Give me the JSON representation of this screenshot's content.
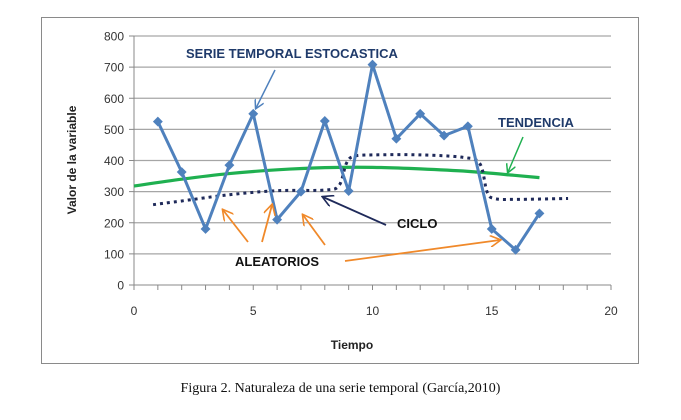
{
  "chart_data": {
    "type": "line",
    "xlabel": "Tiempo",
    "ylabel": "Valor de la variable",
    "xlim": [
      0,
      20
    ],
    "ylim": [
      0,
      800
    ],
    "xticks": [
      0,
      5,
      10,
      15,
      20
    ],
    "xtick_labels": [
      "0",
      "5",
      "10",
      "15",
      "20"
    ],
    "yticks": [
      0,
      100,
      200,
      300,
      400,
      500,
      600,
      700,
      800
    ],
    "ytick_labels": [
      "0",
      "100",
      "200",
      "300",
      "400",
      "500",
      "600",
      "700",
      "800"
    ],
    "grid": true,
    "series": [
      {
        "name": "SERIE TEMPORAL ESTOCASTICA",
        "style": "solid-markers",
        "color": "#4f81bd",
        "x": [
          1,
          2,
          3,
          4,
          5,
          6,
          7,
          8,
          9,
          10,
          11,
          12,
          13,
          14,
          15,
          16,
          17
        ],
        "values": [
          525,
          363,
          180,
          385,
          550,
          210,
          300,
          527,
          302,
          708,
          470,
          550,
          480,
          510,
          180,
          113,
          230
        ]
      },
      {
        "name": "TENDENCIA",
        "style": "solid",
        "color": "#1fb050",
        "x": [
          0,
          2,
          4,
          6,
          8,
          10,
          12,
          14,
          16,
          17
        ],
        "values": [
          318,
          340,
          358,
          370,
          377,
          378,
          373,
          365,
          352,
          345
        ]
      },
      {
        "name": "CICLO",
        "style": "dotted",
        "color": "#1f2a5a",
        "x": [
          0.8,
          2,
          4,
          6,
          8,
          8.6,
          8.9,
          9.2,
          10,
          12,
          13.8,
          14.5,
          14.8,
          15.1,
          16,
          18.2
        ],
        "values": [
          258,
          270,
          290,
          303,
          305,
          320,
          390,
          413,
          418,
          418,
          410,
          390,
          300,
          278,
          275,
          278
        ]
      }
    ],
    "annotations": [
      {
        "text": "SERIE TEMPORAL ESTOCASTICA",
        "color": "#1f3a6a"
      },
      {
        "text": "TENDENCIA",
        "color": "#1f3a6a"
      },
      {
        "text": "CICLO",
        "color": "#111111"
      },
      {
        "text": "ALEATORIOS",
        "color": "#111111"
      }
    ],
    "arrow_colors": {
      "serie": "#4f81bd",
      "tendencia": "#1fb050",
      "ciclo": "#1f2a5a",
      "aleatorios": "#f0892a"
    }
  },
  "caption": "Figura  2. Naturaleza de una serie temporal (García,2010)"
}
